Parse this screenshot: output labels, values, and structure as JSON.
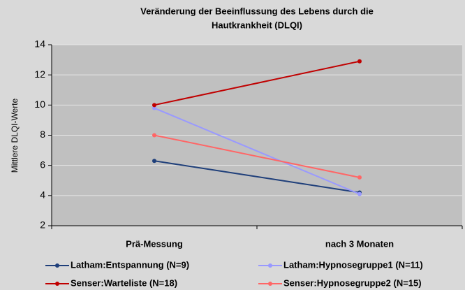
{
  "chart_data": {
    "type": "line",
    "title": [
      "Veränderung der Beeinflussung des Lebens durch die",
      "Hautkrankheit (DLQI)"
    ],
    "y_label": "Mittlere DLQI-Werte",
    "categories": [
      "Prä-Messung",
      "nach 3 Monaten"
    ],
    "series": [
      {
        "name": "Latham:Entspannung (N=9)",
        "color": "#1f3f7a",
        "values": [
          6.3,
          4.2
        ]
      },
      {
        "name": "Latham:Hypnosegruppe1 (N=11)",
        "color": "#9999ff",
        "values": [
          9.8,
          4.1
        ]
      },
      {
        "name": "Senser:Warteliste (N=18)",
        "color": "#c00000",
        "values": [
          10.0,
          12.9
        ]
      },
      {
        "name": "Senser:Hypnosegruppe2 (N=15)",
        "color": "#ff6666",
        "values": [
          8.0,
          5.2
        ]
      }
    ],
    "ylim": [
      2,
      14
    ],
    "yticks": [
      2,
      4,
      6,
      8,
      10,
      12,
      14
    ],
    "grid": true
  }
}
